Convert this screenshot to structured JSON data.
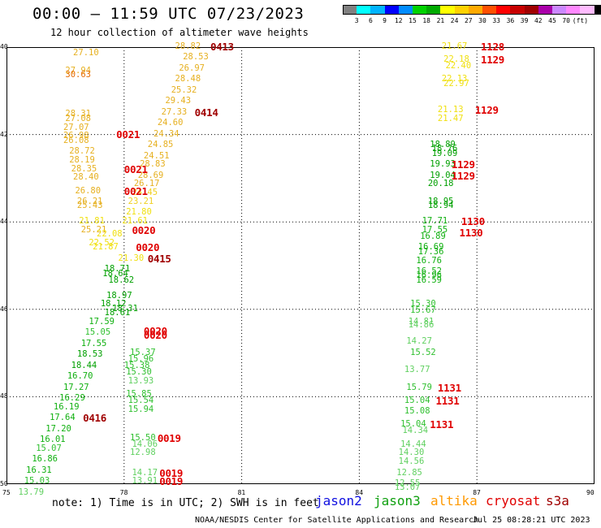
{
  "header": {
    "title": "00:00 – 11:59 UTC 07/23/2023",
    "subtitle": "12 hour collection of altimeter wave heights"
  },
  "legend": {
    "colors": [
      "#808080",
      "#00ffff",
      "#00b4ff",
      "#0000ff",
      "#008cff",
      "#00d200",
      "#00aa00",
      "#ffff00",
      "#ffd200",
      "#ffaa00",
      "#ff5000",
      "#ff0000",
      "#c80000",
      "#a00000",
      "#aa00aa",
      "#cc88ff",
      "#ff88ff",
      "#ffbbff",
      "#000000"
    ],
    "ticks": [
      "3",
      "6",
      "9",
      "12",
      "15",
      "18",
      "21",
      "24",
      "27",
      "30",
      "33",
      "36",
      "39",
      "42",
      "45",
      "70",
      "(ft)"
    ]
  },
  "axes": {
    "x_ticks": [
      "75",
      "78",
      "81",
      "84",
      "87",
      "90"
    ],
    "y_ticks": [
      "40",
      "42",
      "44",
      "46",
      "48",
      "50"
    ]
  },
  "swh": [
    {
      "t": "27.10",
      "lon": 76.7,
      "lat": -40.15,
      "c": "#e6b020"
    },
    {
      "t": "28.82",
      "lon": 79.3,
      "lat": -40.0,
      "c": "#e6b020"
    },
    {
      "t": "28.53",
      "lon": 79.5,
      "lat": -40.25,
      "c": "#e6b020"
    },
    {
      "t": "26.97",
      "lon": 79.4,
      "lat": -40.5,
      "c": "#e6b020"
    },
    {
      "t": "27.94",
      "lon": 76.5,
      "lat": -40.55,
      "c": "#e6b020"
    },
    {
      "t": "30.63",
      "lon": 76.5,
      "lat": -40.65,
      "c": "#e66a00"
    },
    {
      "t": "28.48",
      "lon": 79.3,
      "lat": -40.75,
      "c": "#e6b020"
    },
    {
      "t": "25.32",
      "lon": 79.2,
      "lat": -41.0,
      "c": "#e6b020"
    },
    {
      "t": "29.43",
      "lon": 79.05,
      "lat": -41.25,
      "c": "#e6b020"
    },
    {
      "t": "27.33",
      "lon": 78.95,
      "lat": -41.5,
      "c": "#e6b020"
    },
    {
      "t": "28.31",
      "lon": 76.5,
      "lat": -41.55,
      "c": "#e6b020"
    },
    {
      "t": "27.08",
      "lon": 76.5,
      "lat": -41.65,
      "c": "#e6b020"
    },
    {
      "t": "24.60",
      "lon": 78.85,
      "lat": -41.75,
      "c": "#e6b020"
    },
    {
      "t": "27.07",
      "lon": 76.45,
      "lat": -41.85,
      "c": "#e6b020"
    },
    {
      "t": "24.34",
      "lon": 78.75,
      "lat": -42.0,
      "c": "#e6b020"
    },
    {
      "t": "26.98",
      "lon": 76.45,
      "lat": -42.05,
      "c": "#e6b020"
    },
    {
      "t": "26.08",
      "lon": 76.45,
      "lat": -42.15,
      "c": "#e6b020"
    },
    {
      "t": "24.85",
      "lon": 78.6,
      "lat": -42.25,
      "c": "#e6b020"
    },
    {
      "t": "28.72",
      "lon": 76.6,
      "lat": -42.4,
      "c": "#e6b020"
    },
    {
      "t": "24.51",
      "lon": 78.5,
      "lat": -42.5,
      "c": "#e6b020"
    },
    {
      "t": "28.19",
      "lon": 76.6,
      "lat": -42.6,
      "c": "#e6b020"
    },
    {
      "t": "28.83",
      "lon": 78.4,
      "lat": -42.7,
      "c": "#e6b020"
    },
    {
      "t": "28.35",
      "lon": 76.65,
      "lat": -42.8,
      "c": "#e6b020"
    },
    {
      "t": "28.69",
      "lon": 78.35,
      "lat": -42.95,
      "c": "#e6b020"
    },
    {
      "t": "28.40",
      "lon": 76.7,
      "lat": -43.0,
      "c": "#e6b020"
    },
    {
      "t": "26.17",
      "lon": 78.25,
      "lat": -43.15,
      "c": "#e6b020"
    },
    {
      "t": "26.80",
      "lon": 76.75,
      "lat": -43.3,
      "c": "#e6b020"
    },
    {
      "t": "24.45",
      "lon": 78.2,
      "lat": -43.35,
      "c": "#f0d020"
    },
    {
      "t": "23.21",
      "lon": 78.1,
      "lat": -43.55,
      "c": "#f0d020"
    },
    {
      "t": "26.21",
      "lon": 76.8,
      "lat": -43.55,
      "c": "#e6b020"
    },
    {
      "t": "25.43",
      "lon": 76.8,
      "lat": -43.65,
      "c": "#e6b020"
    },
    {
      "t": "21.80",
      "lon": 78.05,
      "lat": -43.8,
      "c": "#f0e010"
    },
    {
      "t": "21.81",
      "lon": 76.85,
      "lat": -44.0,
      "c": "#f0e010"
    },
    {
      "t": "21.61",
      "lon": 77.95,
      "lat": -44.0,
      "c": "#f0e010"
    },
    {
      "t": "25.21",
      "lon": 76.9,
      "lat": -44.2,
      "c": "#e6b020"
    },
    {
      "t": "22.08",
      "lon": 77.3,
      "lat": -44.3,
      "c": "#f0e010"
    },
    {
      "t": "22.52",
      "lon": 77.1,
      "lat": -44.5,
      "c": "#f0e010"
    },
    {
      "t": "21.87",
      "lon": 77.2,
      "lat": -44.6,
      "c": "#f0e010"
    },
    {
      "t": "21.30",
      "lon": 77.85,
      "lat": -44.85,
      "c": "#f0e010"
    },
    {
      "t": "18.71",
      "lon": 77.5,
      "lat": -45.1,
      "c": "#00a000"
    },
    {
      "t": "18.64",
      "lon": 77.45,
      "lat": -45.2,
      "c": "#00a000"
    },
    {
      "t": "18.62",
      "lon": 77.6,
      "lat": -45.35,
      "c": "#00a000"
    },
    {
      "t": "18.97",
      "lon": 77.55,
      "lat": -45.7,
      "c": "#00a000"
    },
    {
      "t": "18.12",
      "lon": 77.4,
      "lat": -45.9,
      "c": "#00a000"
    },
    {
      "t": "18.31",
      "lon": 77.7,
      "lat": -46.0,
      "c": "#00a000"
    },
    {
      "t": "18.61",
      "lon": 77.5,
      "lat": -46.1,
      "c": "#00a000"
    },
    {
      "t": "17.59",
      "lon": 77.1,
      "lat": -46.3,
      "c": "#10b010"
    },
    {
      "t": "15.05",
      "lon": 77.0,
      "lat": -46.55,
      "c": "#30c030"
    },
    {
      "t": "17.55",
      "lon": 76.9,
      "lat": -46.8,
      "c": "#10b010"
    },
    {
      "t": "18.53",
      "lon": 76.8,
      "lat": -47.05,
      "c": "#00a000"
    },
    {
      "t": "18.44",
      "lon": 76.65,
      "lat": -47.3,
      "c": "#00a000"
    },
    {
      "t": "16.70",
      "lon": 76.55,
      "lat": -47.55,
      "c": "#10b010"
    },
    {
      "t": "17.27",
      "lon": 76.45,
      "lat": -47.8,
      "c": "#10b010"
    },
    {
      "t": "16.29",
      "lon": 76.35,
      "lat": -48.05,
      "c": "#10b010"
    },
    {
      "t": "16.19",
      "lon": 76.2,
      "lat": -48.25,
      "c": "#10b010"
    },
    {
      "t": "17.64",
      "lon": 76.1,
      "lat": -48.5,
      "c": "#10b010"
    },
    {
      "t": "17.20",
      "lon": 76.0,
      "lat": -48.75,
      "c": "#10b010"
    },
    {
      "t": "16.01",
      "lon": 75.85,
      "lat": -49.0,
      "c": "#10b010"
    },
    {
      "t": "15.07",
      "lon": 75.75,
      "lat": -49.2,
      "c": "#30c030"
    },
    {
      "t": "16.86",
      "lon": 75.65,
      "lat": -49.45,
      "c": "#10b010"
    },
    {
      "t": "16.31",
      "lon": 75.5,
      "lat": -49.7,
      "c": "#10b010"
    },
    {
      "t": "15.03",
      "lon": 75.45,
      "lat": -49.95,
      "c": "#30c030"
    },
    {
      "t": "13.79",
      "lon": 75.3,
      "lat": -50.2,
      "c": "#60d060"
    },
    {
      "t": "15.37",
      "lon": 78.15,
      "lat": -47.0,
      "c": "#30c030"
    },
    {
      "t": "15.96",
      "lon": 78.1,
      "lat": -47.15,
      "c": "#30c030"
    },
    {
      "t": "15.38",
      "lon": 78.0,
      "lat": -47.3,
      "c": "#30c030"
    },
    {
      "t": "15.30",
      "lon": 78.05,
      "lat": -47.45,
      "c": "#30c030"
    },
    {
      "t": "13.93",
      "lon": 78.1,
      "lat": -47.65,
      "c": "#60d060"
    },
    {
      "t": "15.85",
      "lon": 78.05,
      "lat": -47.95,
      "c": "#30c030"
    },
    {
      "t": "15.54",
      "lon": 78.1,
      "lat": -48.1,
      "c": "#30c030"
    },
    {
      "t": "15.94",
      "lon": 78.1,
      "lat": -48.3,
      "c": "#30c030"
    },
    {
      "t": "15.50",
      "lon": 78.15,
      "lat": -48.95,
      "c": "#30c030"
    },
    {
      "t": "14.06",
      "lon": 78.2,
      "lat": -49.1,
      "c": "#60d060"
    },
    {
      "t": "12.98",
      "lon": 78.15,
      "lat": -49.3,
      "c": "#60d060"
    },
    {
      "t": "14.17",
      "lon": 78.2,
      "lat": -49.75,
      "c": "#60d060"
    },
    {
      "t": "13.91",
      "lon": 78.2,
      "lat": -49.95,
      "c": "#60d060"
    },
    {
      "t": "21.67",
      "lon": 86.1,
      "lat": -40.0,
      "c": "#f0e010"
    },
    {
      "t": "22.18",
      "lon": 86.15,
      "lat": -40.3,
      "c": "#f0e010"
    },
    {
      "t": "22.40",
      "lon": 86.2,
      "lat": -40.45,
      "c": "#f0e010"
    },
    {
      "t": "22.13",
      "lon": 86.1,
      "lat": -40.75,
      "c": "#f0e010"
    },
    {
      "t": "22.97",
      "lon": 86.15,
      "lat": -40.85,
      "c": "#f0e010"
    },
    {
      "t": "21.13",
      "lon": 86.0,
      "lat": -41.45,
      "c": "#f0e010"
    },
    {
      "t": "21.47",
      "lon": 86.0,
      "lat": -41.65,
      "c": "#f0e010"
    },
    {
      "t": "18.89",
      "lon": 85.8,
      "lat": -42.25,
      "c": "#00a000"
    },
    {
      "t": "18.76",
      "lon": 85.85,
      "lat": -42.35,
      "c": "#00a000"
    },
    {
      "t": "19.09",
      "lon": 85.85,
      "lat": -42.45,
      "c": "#00a000"
    },
    {
      "t": "19.93",
      "lon": 85.8,
      "lat": -42.7,
      "c": "#00a000"
    },
    {
      "t": "19.04",
      "lon": 85.8,
      "lat": -42.95,
      "c": "#00a000"
    },
    {
      "t": "20.18",
      "lon": 85.75,
      "lat": -43.15,
      "c": "#00a000"
    },
    {
      "t": "18.95",
      "lon": 85.75,
      "lat": -43.55,
      "c": "#00a000"
    },
    {
      "t": "18.94",
      "lon": 85.75,
      "lat": -43.65,
      "c": "#00a000"
    },
    {
      "t": "17.71",
      "lon": 85.6,
      "lat": -44.0,
      "c": "#10b010"
    },
    {
      "t": "17.55",
      "lon": 85.6,
      "lat": -44.2,
      "c": "#10b010"
    },
    {
      "t": "16.89",
      "lon": 85.55,
      "lat": -44.35,
      "c": "#10b010"
    },
    {
      "t": "16.69",
      "lon": 85.5,
      "lat": -44.6,
      "c": "#10b010"
    },
    {
      "t": "17.36",
      "lon": 85.5,
      "lat": -44.7,
      "c": "#10b010"
    },
    {
      "t": "16.76",
      "lon": 85.45,
      "lat": -44.9,
      "c": "#10b010"
    },
    {
      "t": "16.52",
      "lon": 85.45,
      "lat": -45.15,
      "c": "#10b010"
    },
    {
      "t": "16.96",
      "lon": 85.45,
      "lat": -45.25,
      "c": "#10b010"
    },
    {
      "t": "16.59",
      "lon": 85.45,
      "lat": -45.35,
      "c": "#10b010"
    },
    {
      "t": "15.30",
      "lon": 85.3,
      "lat": -45.9,
      "c": "#30c030"
    },
    {
      "t": "15.67",
      "lon": 85.3,
      "lat": -46.05,
      "c": "#30c030"
    },
    {
      "t": "14.81",
      "lon": 85.25,
      "lat": -46.3,
      "c": "#60d060"
    },
    {
      "t": "14.86",
      "lon": 85.25,
      "lat": -46.38,
      "c": "#60d060"
    },
    {
      "t": "14.27",
      "lon": 85.2,
      "lat": -46.75,
      "c": "#60d060"
    },
    {
      "t": "15.52",
      "lon": 85.3,
      "lat": -47.0,
      "c": "#30c030"
    },
    {
      "t": "13.77",
      "lon": 85.15,
      "lat": -47.4,
      "c": "#60d060"
    },
    {
      "t": "15.79",
      "lon": 85.2,
      "lat": -47.8,
      "c": "#30c030"
    },
    {
      "t": "15.04",
      "lon": 85.15,
      "lat": -48.1,
      "c": "#30c030"
    },
    {
      "t": "15.08",
      "lon": 85.15,
      "lat": -48.35,
      "c": "#30c030"
    },
    {
      "t": "15.04",
      "lon": 85.05,
      "lat": -48.65,
      "c": "#30c030"
    },
    {
      "t": "14.34",
      "lon": 85.1,
      "lat": -48.8,
      "c": "#60d060"
    },
    {
      "t": "14.44",
      "lon": 85.05,
      "lat": -49.1,
      "c": "#60d060"
    },
    {
      "t": "14.30",
      "lon": 85.0,
      "lat": -49.3,
      "c": "#60d060"
    },
    {
      "t": "14.56",
      "lon": 85.0,
      "lat": -49.5,
      "c": "#60d060"
    },
    {
      "t": "12.85",
      "lon": 84.95,
      "lat": -49.75,
      "c": "#60d060"
    },
    {
      "t": "12.55",
      "lon": 84.9,
      "lat": -50.0,
      "c": "#60d060"
    },
    {
      "t": "13.07",
      "lon": 84.9,
      "lat": -50.1,
      "c": "#60d060"
    }
  ],
  "times": [
    {
      "t": "0413",
      "lon": 80.2,
      "lat": -40.0,
      "c": "#a00000"
    },
    {
      "t": "0414",
      "lon": 79.8,
      "lat": -41.5,
      "c": "#a00000"
    },
    {
      "t": "0021",
      "lon": 77.8,
      "lat": -42.0,
      "c": "#e00000"
    },
    {
      "t": "0021",
      "lon": 78.0,
      "lat": -42.8,
      "c": "#e00000"
    },
    {
      "t": "0021",
      "lon": 78.0,
      "lat": -43.3,
      "c": "#e00000"
    },
    {
      "t": "0020",
      "lon": 78.2,
      "lat": -44.2,
      "c": "#e00000"
    },
    {
      "t": "0020",
      "lon": 78.3,
      "lat": -44.6,
      "c": "#e00000"
    },
    {
      "t": "0415",
      "lon": 78.6,
      "lat": -44.85,
      "c": "#a00000"
    },
    {
      "t": "0020",
      "lon": 78.5,
      "lat": -46.5,
      "c": "#e00000"
    },
    {
      "t": "0020",
      "lon": 78.5,
      "lat": -46.6,
      "c": "#e00000"
    },
    {
      "t": "0416",
      "lon": 76.95,
      "lat": -48.5,
      "c": "#a00000"
    },
    {
      "t": "0019",
      "lon": 78.85,
      "lat": -48.95,
      "c": "#e00000"
    },
    {
      "t": "0019",
      "lon": 78.9,
      "lat": -49.75,
      "c": "#e00000"
    },
    {
      "t": "0019",
      "lon": 78.9,
      "lat": -49.95,
      "c": "#e00000"
    },
    {
      "t": "1128",
      "lon": 87.1,
      "lat": -40.0,
      "c": "#e00000"
    },
    {
      "t": "1129",
      "lon": 87.1,
      "lat": -40.3,
      "c": "#e00000"
    },
    {
      "t": "1129",
      "lon": 86.95,
      "lat": -41.45,
      "c": "#e00000"
    },
    {
      "t": "1129",
      "lon": 86.35,
      "lat": -42.7,
      "c": "#e00000"
    },
    {
      "t": "1129",
      "lon": 86.35,
      "lat": -42.95,
      "c": "#e00000"
    },
    {
      "t": "1130",
      "lon": 86.6,
      "lat": -44.0,
      "c": "#e00000"
    },
    {
      "t": "1130",
      "lon": 86.55,
      "lat": -44.25,
      "c": "#e00000"
    },
    {
      "t": "1131",
      "lon": 86.0,
      "lat": -47.8,
      "c": "#e00000"
    },
    {
      "t": "1131",
      "lon": 85.95,
      "lat": -48.1,
      "c": "#e00000"
    },
    {
      "t": "1131",
      "lon": 85.8,
      "lat": -48.65,
      "c": "#e00000"
    }
  ],
  "notes": {
    "note_text": "note: 1) Time is in UTC; 2) SWH is in feet",
    "satellites": [
      {
        "name": "jason2",
        "color": "#1010e0"
      },
      {
        "name": "jason3",
        "color": "#10a010"
      },
      {
        "name": "altika",
        "color": "#ff9900"
      },
      {
        "name": "cryosat",
        "color": "#e00000"
      },
      {
        "name": "s3a",
        "color": "#a00000"
      }
    ],
    "source": "NOAA/NESDIS Center for Satellite Applications and Research",
    "timestamp": "Jul 25 08:28:21 UTC 2023"
  }
}
